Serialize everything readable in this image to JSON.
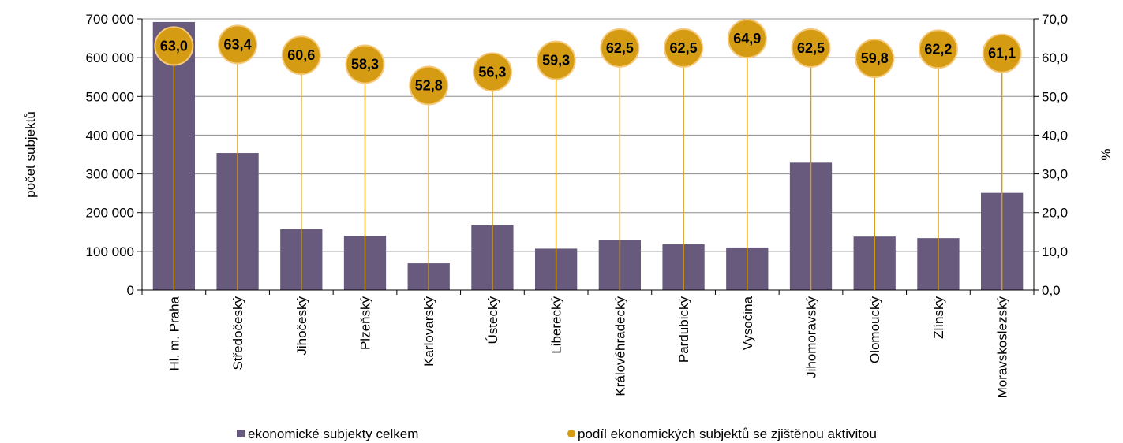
{
  "colors": {
    "bar": "#675A7D",
    "bubble": "#D49B13",
    "bubble_stroke": "#F5C878",
    "line": "#D49B13",
    "axis": "#000000",
    "grid": "#8C8C8C"
  },
  "chart_data": {
    "type": "bar",
    "title": "",
    "categories": [
      "Hl. m. Praha",
      "Středočeský",
      "Jihočeský",
      "Plzeňský",
      "Karlovarský",
      "Ústecký",
      "Liberecký",
      "Královéhradecký",
      "Pardubický",
      "Vysočina",
      "Jihomoravský",
      "Olomoucký",
      "Zlínský",
      "Moravskoslezský"
    ],
    "series": [
      {
        "name": "ekonomické subjekty celkem",
        "axis": "left",
        "kind": "bar",
        "values": [
          692000,
          354000,
          157000,
          140000,
          69000,
          167000,
          107000,
          130000,
          118000,
          110000,
          329000,
          138000,
          134000,
          251000
        ]
      },
      {
        "name": "podíl ekonomických subjektů se zjištěnou aktivitou",
        "axis": "right",
        "kind": "bubble",
        "values": [
          63.0,
          63.4,
          60.6,
          58.3,
          52.8,
          56.3,
          59.3,
          62.5,
          62.5,
          64.9,
          62.5,
          59.8,
          62.2,
          61.1
        ],
        "labels": [
          "63,0",
          "63,4",
          "60,6",
          "58,3",
          "52,8",
          "56,3",
          "59,3",
          "62,5",
          "62,5",
          "64,9",
          "62,5",
          "59,8",
          "62,2",
          "61,1"
        ]
      }
    ],
    "ylabel": "počet subjektů",
    "y2label": "%",
    "ylim": [
      0,
      700000
    ],
    "y2lim": [
      0,
      70
    ],
    "yticks": [
      0,
      100000,
      200000,
      300000,
      400000,
      500000,
      600000,
      700000
    ],
    "ytick_labels": [
      "0",
      "100 000",
      "200 000",
      "300 000",
      "400 000",
      "500 000",
      "600 000",
      "700 000"
    ],
    "y2ticks": [
      0,
      10,
      20,
      30,
      40,
      50,
      60,
      70
    ],
    "y2tick_labels": [
      "0,0",
      "10,0",
      "20,0",
      "30,0",
      "40,0",
      "50,0",
      "60,0",
      "70,0"
    ],
    "grid": true,
    "legend": "bottom"
  }
}
